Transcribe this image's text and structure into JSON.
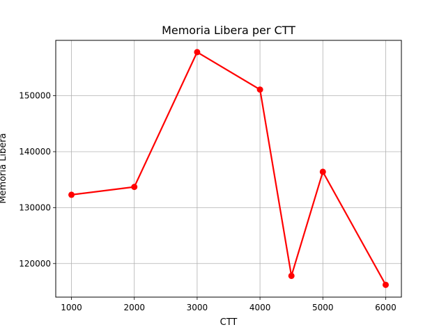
{
  "chart_data": {
    "type": "line",
    "title": "Memoria Libera per CTT",
    "xlabel": "CTT",
    "ylabel": "Memoria Libera",
    "x": [
      1000,
      2000,
      3000,
      4000,
      4500,
      5000,
      6000
    ],
    "series": [
      {
        "values": [
          132300,
          133700,
          157800,
          151100,
          117800,
          136400,
          116200
        ],
        "color": "#ff0000",
        "marker": "circle"
      }
    ],
    "xlim": [
      750,
      6250
    ],
    "ylim": [
      114000,
      159900
    ],
    "xticks": [
      1000,
      2000,
      3000,
      4000,
      5000,
      6000
    ],
    "yticks": [
      120000,
      130000,
      140000,
      150000
    ],
    "grid": true
  }
}
